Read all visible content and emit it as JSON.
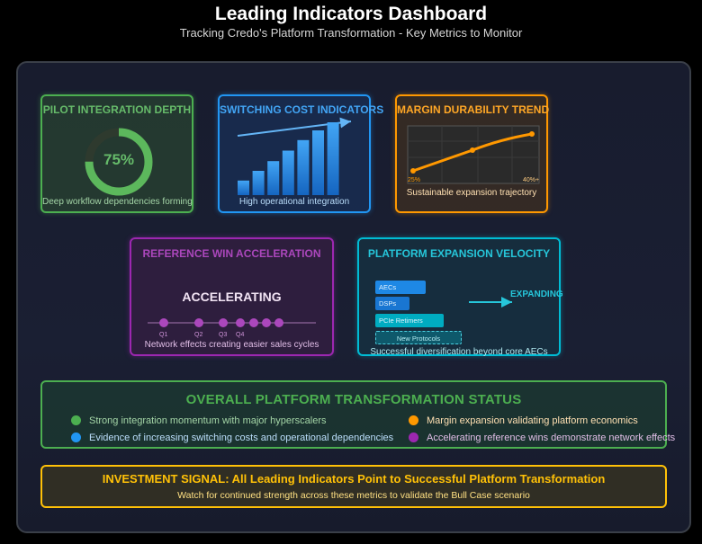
{
  "header": {
    "title": "Leading Indicators Dashboard",
    "subtitle": "Tracking Credo's Platform Transformation - Key Metrics to Monitor"
  },
  "cards": {
    "pilot": {
      "title": "PILOT INTEGRATION DEPTH",
      "value_label": "75%",
      "progress_fraction": 0.75,
      "caption": "Deep workflow dependencies forming",
      "color": "#4caf50"
    },
    "switching": {
      "title": "SWITCHING COST INDICATORS",
      "bar_levels": [
        0.18,
        0.3,
        0.42,
        0.55,
        0.68,
        0.8,
        0.9
      ],
      "caption": "High operational integration",
      "color": "#2196f3"
    },
    "margin": {
      "title": "MARGIN DURABILITY TREND",
      "start_label": "25%",
      "end_label": "40%+",
      "caption": "Sustainable expansion trajectory",
      "color": "#ff9800"
    },
    "reference": {
      "title": "REFERENCE WIN ACCELERATION",
      "status_word": "ACCELERATING",
      "quarters": [
        "Q1",
        "Q2",
        "Q3",
        "Q4"
      ],
      "caption": "Network effects creating easier sales cycles",
      "color": "#9c27b0"
    },
    "platform": {
      "title": "PLATFORM EXPANSION VELOCITY",
      "products": [
        "AECs",
        "DSPs",
        "PCIe Retimers",
        "New Protocols"
      ],
      "arrow_label": "EXPANDING",
      "caption": "Successful diversification beyond core AECs",
      "color": "#00bcd4"
    }
  },
  "status": {
    "title": "OVERALL PLATFORM TRANSFORMATION STATUS",
    "bullets": [
      {
        "text": "Strong integration momentum with major hyperscalers",
        "color": "#4caf50"
      },
      {
        "text": "Margin expansion validating platform economics",
        "color": "#ff9800"
      },
      {
        "text": "Evidence of increasing switching costs and operational dependencies",
        "color": "#2196f3"
      },
      {
        "text": "Accelerating reference wins demonstrate network effects",
        "color": "#9c27b0"
      }
    ]
  },
  "signal": {
    "title": "INVESTMENT SIGNAL: All Leading Indicators Point to Successful Platform Transformation",
    "subtitle": "Watch for continued strength across these metrics to validate the Bull Case scenario"
  }
}
